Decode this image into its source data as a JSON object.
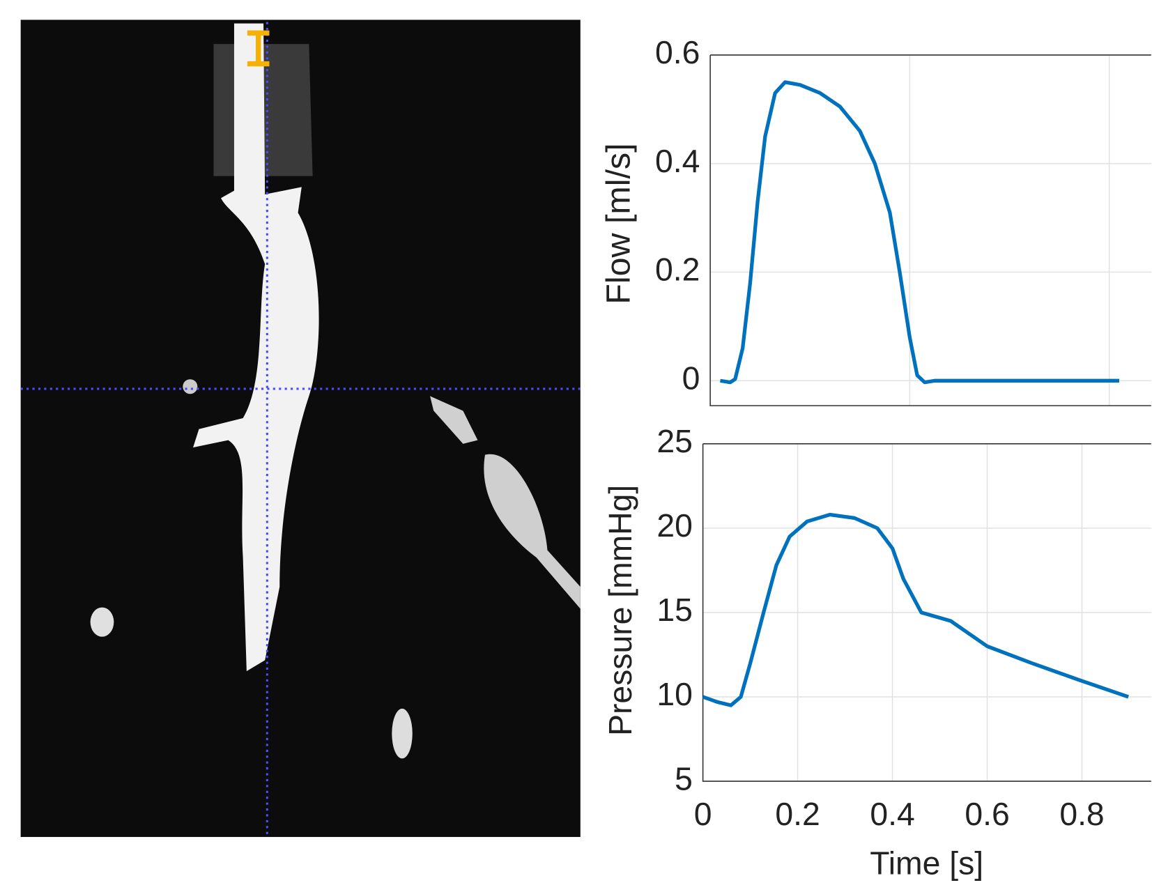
{
  "chart_data": [
    {
      "type": "line",
      "y_label": "Flow [ml/s]",
      "color": "#0072bd",
      "grid": true,
      "x": [
        0.02,
        0.04,
        0.05,
        0.065,
        0.08,
        0.095,
        0.11,
        0.13,
        0.15,
        0.18,
        0.22,
        0.26,
        0.3,
        0.33,
        0.36,
        0.38,
        0.4,
        0.415,
        0.43,
        0.45,
        0.6,
        0.82
      ],
      "values": [
        0,
        -0.003,
        0.003,
        0.06,
        0.18,
        0.33,
        0.45,
        0.53,
        0.55,
        0.545,
        0.53,
        0.505,
        0.46,
        0.4,
        0.31,
        0.2,
        0.08,
        0.01,
        -0.003,
        0,
        0,
        0
      ],
      "xlim": [
        0,
        0.884
      ],
      "ylim": [
        -0.046,
        0.6
      ],
      "xticks": [
        0.4,
        0.8
      ],
      "yticks": [
        0,
        0.2,
        0.4,
        0.6
      ]
    },
    {
      "type": "line",
      "x_label": "Time [s]",
      "y_label": "Pressure [mmHg]",
      "color": "#0072bd",
      "grid": true,
      "x": [
        0,
        0.03,
        0.059,
        0.08,
        0.1,
        0.128,
        0.155,
        0.183,
        0.22,
        0.268,
        0.32,
        0.368,
        0.4,
        0.423,
        0.461,
        0.523,
        0.6,
        0.694,
        0.794,
        0.898
      ],
      "values": [
        10,
        9.7,
        9.5,
        10,
        12,
        15,
        17.8,
        19.5,
        20.4,
        20.8,
        20.6,
        20,
        18.8,
        17,
        15,
        14.5,
        13,
        12,
        11,
        10
      ],
      "xlim": [
        0,
        0.946
      ],
      "ylim": [
        5,
        25
      ],
      "xticks": [
        0,
        0.2,
        0.4,
        0.6,
        0.8
      ],
      "yticks": [
        5,
        10,
        15,
        20,
        25
      ]
    }
  ]
}
